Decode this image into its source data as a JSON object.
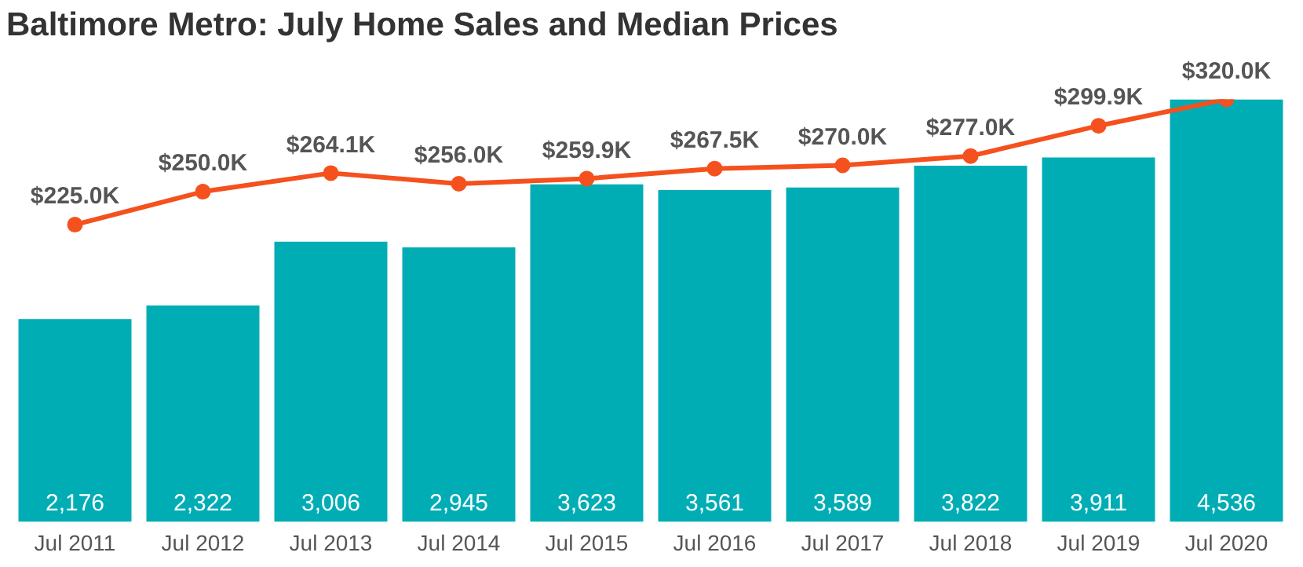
{
  "chart_data": {
    "type": "bar",
    "title": "Baltimore Metro: July Home Sales and Median Prices",
    "categories": [
      "Jul 2011",
      "Jul 2012",
      "Jul 2013",
      "Jul 2014",
      "Jul 2015",
      "Jul 2016",
      "Jul 2017",
      "Jul 2018",
      "Jul 2019",
      "Jul 2020"
    ],
    "series": [
      {
        "color": "#00adb5",
        "values": [
          2176,
          2322,
          3006,
          2945,
          3623,
          3561,
          3589,
          3822,
          3911,
          4536
        ],
        "value_labels": [
          "2,176",
          "2,322",
          "3,006",
          "2,945",
          "3,623",
          "3,561",
          "3,589",
          "3,822",
          "3,911",
          "4,536"
        ]
      },
      {
        "type": "line",
        "axis": "y2",
        "color": "#f4511e",
        "values": [
          225.0,
          250.0,
          264.1,
          256.0,
          259.9,
          267.5,
          270.0,
          277.0,
          299.9,
          320.0
        ],
        "value_labels": [
          "$225.0K",
          "$250.0K",
          "$264.1K",
          "$256.0K",
          "$259.9K",
          "$267.5K",
          "$270.0K",
          "$277.0K",
          "$299.9K",
          "$320.0K"
        ]
      }
    ],
    "tick_labels": "x",
    "grid": false,
    "legend": false,
    "marker": "circle",
    "line_style": "solid"
  }
}
